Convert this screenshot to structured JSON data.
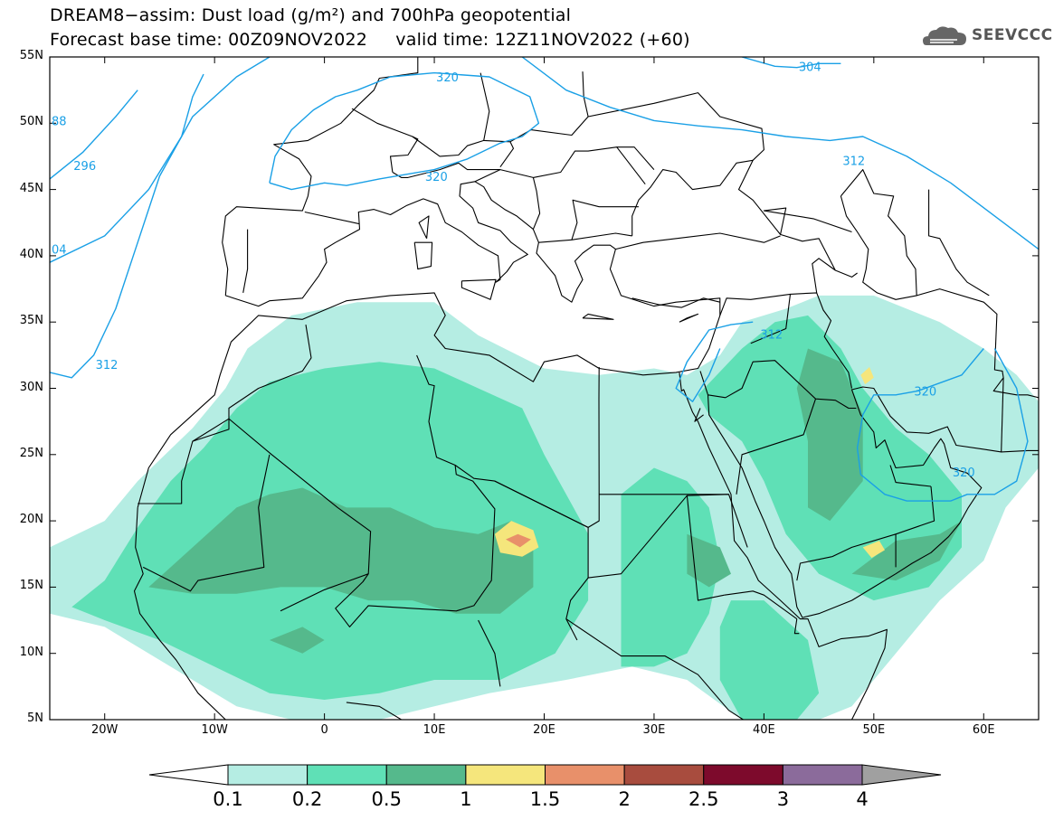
{
  "title": {
    "line1": "DREAM8−assim: Dust load (g/m²) and 700hPa geopotential",
    "line2": "Forecast base time: 00Z09NOV2022     valid time: 12Z11NOV2022 (+60)"
  },
  "logo": {
    "text": "SEEVCCC",
    "icon": "cloud-icon"
  },
  "axes": {
    "lat_labels": [
      "55N",
      "50N",
      "45N",
      "40N",
      "35N",
      "30N",
      "25N",
      "20N",
      "15N",
      "10N",
      "5N"
    ],
    "lat_values": [
      55,
      50,
      45,
      40,
      35,
      30,
      25,
      20,
      15,
      10,
      5
    ],
    "lon_labels": [
      "20W",
      "10W",
      "0",
      "10E",
      "20E",
      "30E",
      "40E",
      "50E",
      "60E"
    ],
    "lon_values": [
      -20,
      -10,
      0,
      10,
      20,
      30,
      40,
      50,
      60
    ],
    "lon_range": [
      -25,
      65
    ],
    "lat_range": [
      5,
      55
    ]
  },
  "contours": {
    "color": "#1aa0e6",
    "labels": [
      "88",
      "296",
      "04",
      "312",
      "320",
      "320",
      "304",
      "312",
      "312",
      "320",
      "320"
    ]
  },
  "colorbar": {
    "labels": [
      "0.1",
      "0.2",
      "0.5",
      "1",
      "1.5",
      "2",
      "2.5",
      "3",
      "4"
    ],
    "colors": [
      "#ffffff",
      "#b5ede3",
      "#5fe0b6",
      "#55b98c",
      "#f5e67c",
      "#e8906a",
      "#a84c3e",
      "#7d0a2c",
      "#8b6b9b",
      "#a0a0a0"
    ]
  },
  "dust_colors": {
    "light": "#b5ede3",
    "medium": "#5fe0b6",
    "dark": "#55b98c",
    "yellow": "#f5e67c",
    "orange": "#e8906a"
  }
}
